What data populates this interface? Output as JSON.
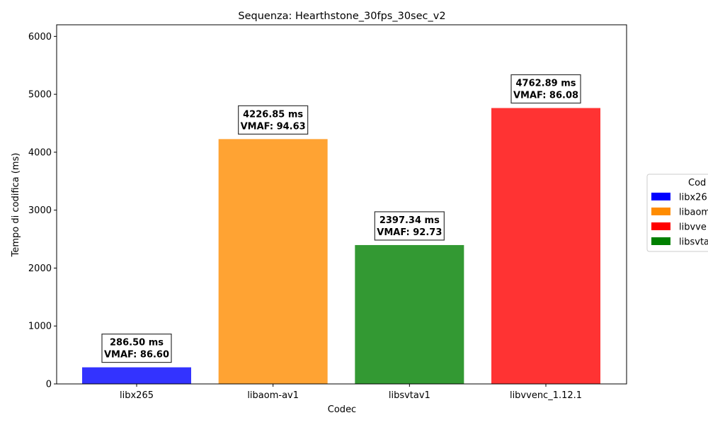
{
  "chart_data": {
    "type": "bar",
    "title": "Sequenza: Hearthstone_30fps_30sec_v2",
    "xlabel": "Codec",
    "ylabel": "Tempo di codifica (ms)",
    "ylim": [
      0,
      6200
    ],
    "yticks": [
      "0",
      "1000",
      "2000",
      "3000",
      "4000",
      "5000",
      "6000"
    ],
    "categories": [
      "libx265",
      "libaom-av1",
      "libsvtav1",
      "libvvenc_1.12.1"
    ],
    "values": [
      286.5,
      4226.85,
      2397.34,
      4762.89
    ],
    "colors": [
      "#3333ff",
      "#ffa333",
      "#339933",
      "#ff3333"
    ],
    "annotations": [
      {
        "time": "286.50 ms",
        "vmaf": "VMAF: 86.60"
      },
      {
        "time": "4226.85 ms",
        "vmaf": "VMAF: 94.63"
      },
      {
        "time": "2397.34 ms",
        "vmaf": "VMAF: 92.73"
      },
      {
        "time": "4762.89 ms",
        "vmaf": "VMAF: 86.08"
      }
    ],
    "grid": false,
    "legend": {
      "placement": "right",
      "title": "Cod",
      "entries": [
        {
          "label": "libx26",
          "color": "#0000ff"
        },
        {
          "label": "libaom",
          "color": "#ff8c00"
        },
        {
          "label": "libvve",
          "color": "#ff0000"
        },
        {
          "label": "libsvta",
          "color": "#008000"
        }
      ]
    }
  }
}
